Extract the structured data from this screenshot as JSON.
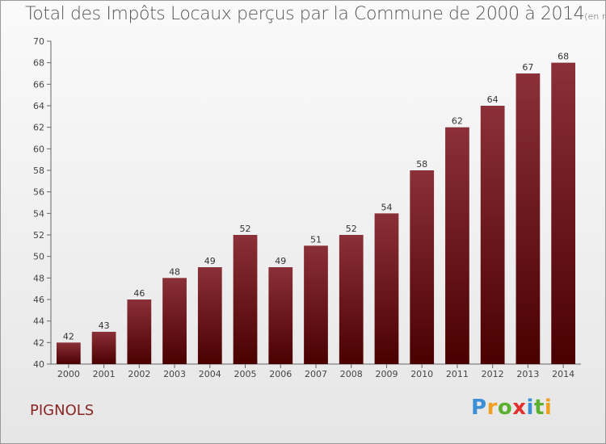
{
  "header": {
    "title": "Total des Impôts Locaux perçus par la Commune de 2000 à 2014",
    "unit": "(en milliers d'€)"
  },
  "commune": "PIGNOLS",
  "brand": {
    "letters": [
      "P",
      "r",
      "o",
      "x",
      "i",
      "t",
      "i"
    ],
    "colors": [
      "#3a8fd6",
      "#f0a020",
      "#5cb030",
      "#e03030",
      "#3a8fd6",
      "#5cb030",
      "#f0a020"
    ]
  },
  "colors": {
    "bar_top": "#8b3038",
    "bar_bottom": "#4a0000",
    "axis": "#666666"
  },
  "chart_data": {
    "type": "bar",
    "categories": [
      "2000",
      "2001",
      "2002",
      "2003",
      "2004",
      "2005",
      "2006",
      "2007",
      "2008",
      "2009",
      "2010",
      "2011",
      "2012",
      "2013",
      "2014"
    ],
    "values": [
      42,
      43,
      46,
      48,
      49,
      52,
      49,
      51,
      52,
      54,
      58,
      62,
      64,
      67,
      68
    ],
    "value_labels": [
      "42",
      "43",
      "46",
      "48",
      "49",
      "52",
      "49",
      "51",
      "52",
      "54",
      "58",
      "62",
      "64",
      "67",
      "68"
    ],
    "yticks": [
      "40",
      "42",
      "44",
      "46",
      "48",
      "50",
      "52",
      "54",
      "56",
      "58",
      "60",
      "62",
      "64",
      "66",
      "68",
      "70"
    ],
    "ylim": [
      40,
      70
    ],
    "grid": false
  }
}
